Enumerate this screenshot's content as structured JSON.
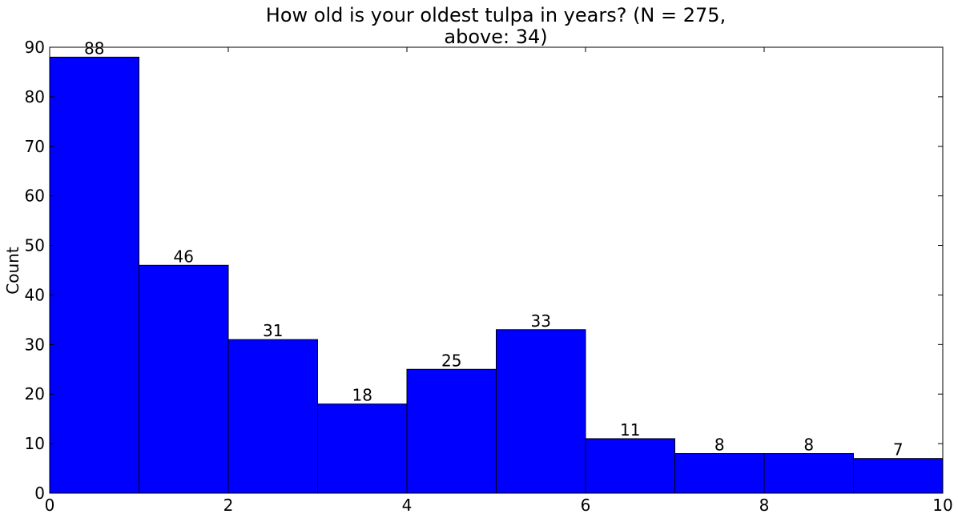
{
  "chart_data": {
    "type": "histogram",
    "title": [
      "How old is your oldest tulpa in years? (N = 275,",
      "above: 34)"
    ],
    "ylabel": "Count",
    "bins": [
      0,
      1,
      2,
      3,
      4,
      5,
      6,
      7,
      8,
      9,
      10
    ],
    "values": [
      88,
      46,
      31,
      18,
      25,
      33,
      11,
      8,
      8,
      7
    ],
    "color": "#0000ff",
    "xlim": [
      0,
      10
    ],
    "xticks": [
      0,
      2,
      4,
      6,
      8,
      10
    ],
    "ylim": [
      0,
      90
    ],
    "yticks": [
      0,
      10,
      20,
      30,
      40,
      50,
      60,
      70,
      80,
      90
    ]
  }
}
